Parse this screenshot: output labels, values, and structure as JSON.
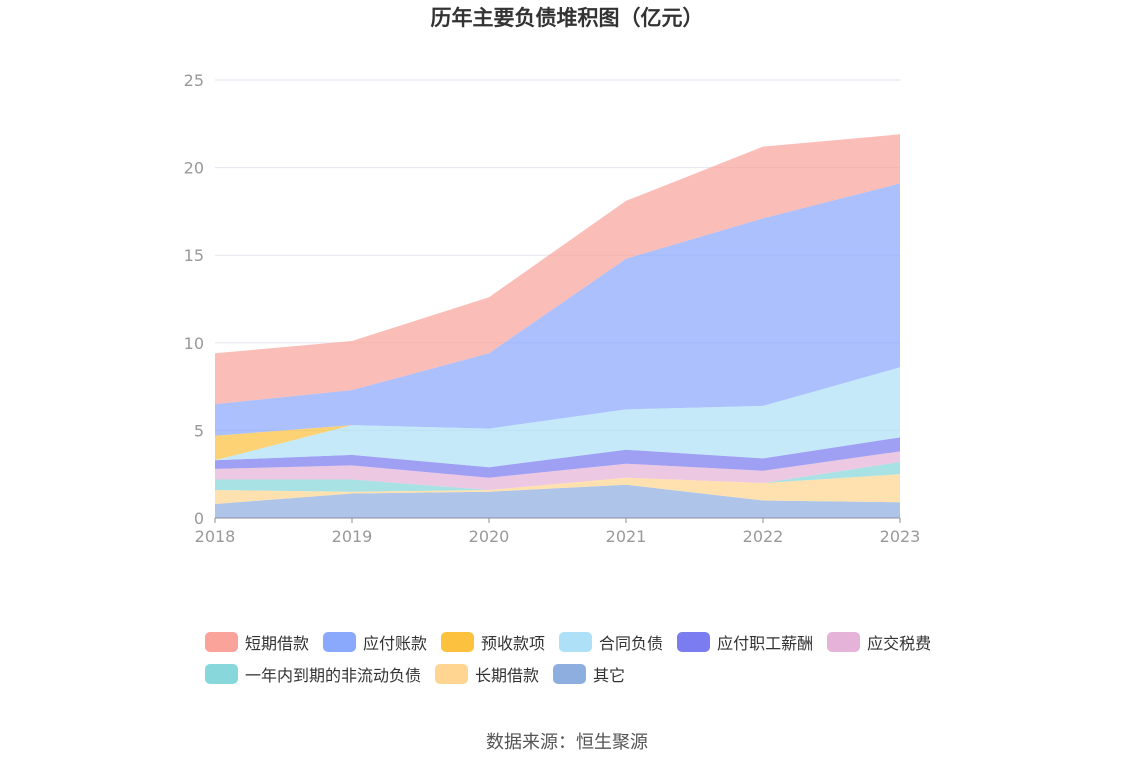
{
  "title": "历年主要负债堆积图（亿元）",
  "source": "数据来源：恒生聚源",
  "chart_data": {
    "type": "area",
    "stacked": true,
    "x": [
      "2018",
      "2019",
      "2020",
      "2021",
      "2022",
      "2023"
    ],
    "ylim": [
      0,
      25
    ],
    "yticks": [
      "0",
      "5",
      "10",
      "15",
      "20",
      "25"
    ],
    "grid": true,
    "legend": "bottom",
    "series": [
      {
        "name": "其它",
        "color": "#8faee0",
        "values": [
          0.8,
          1.4,
          1.5,
          1.9,
          1.0,
          0.9
        ]
      },
      {
        "name": "长期借款",
        "color": "#ffd591",
        "values": [
          0.8,
          0.1,
          0.1,
          0.4,
          1.0,
          1.6
        ]
      },
      {
        "name": "一年内到期的非流动负债",
        "color": "#87d7db",
        "values": [
          0.6,
          0.7,
          0.0,
          0.0,
          0.0,
          0.7
        ]
      },
      {
        "name": "应交税费",
        "color": "#e6b3d8",
        "values": [
          0.6,
          0.8,
          0.7,
          0.8,
          0.7,
          0.6
        ]
      },
      {
        "name": "应付职工薪酬",
        "color": "#7a7cf0",
        "values": [
          0.5,
          0.6,
          0.6,
          0.8,
          0.7,
          0.8
        ]
      },
      {
        "name": "合同负债",
        "color": "#aee0f7",
        "values": [
          0.0,
          1.7,
          2.2,
          2.3,
          3.0,
          4.0
        ]
      },
      {
        "name": "预收款项",
        "color": "#fcc13f",
        "values": [
          1.4,
          0.0,
          0.0,
          0.0,
          0.0,
          0.0
        ]
      },
      {
        "name": "应付账款",
        "color": "#8aa8fc",
        "values": [
          1.8,
          2.0,
          4.3,
          8.6,
          10.7,
          10.5
        ]
      },
      {
        "name": "短期借款",
        "color": "#f9a39b",
        "values": [
          2.9,
          2.8,
          3.2,
          3.3,
          4.1,
          2.8
        ]
      }
    ],
    "legend_order": [
      "短期借款",
      "应付账款",
      "预收款项",
      "合同负债",
      "应付职工薪酬",
      "应交税费",
      "一年内到期的非流动负债",
      "长期借款",
      "其它"
    ]
  }
}
